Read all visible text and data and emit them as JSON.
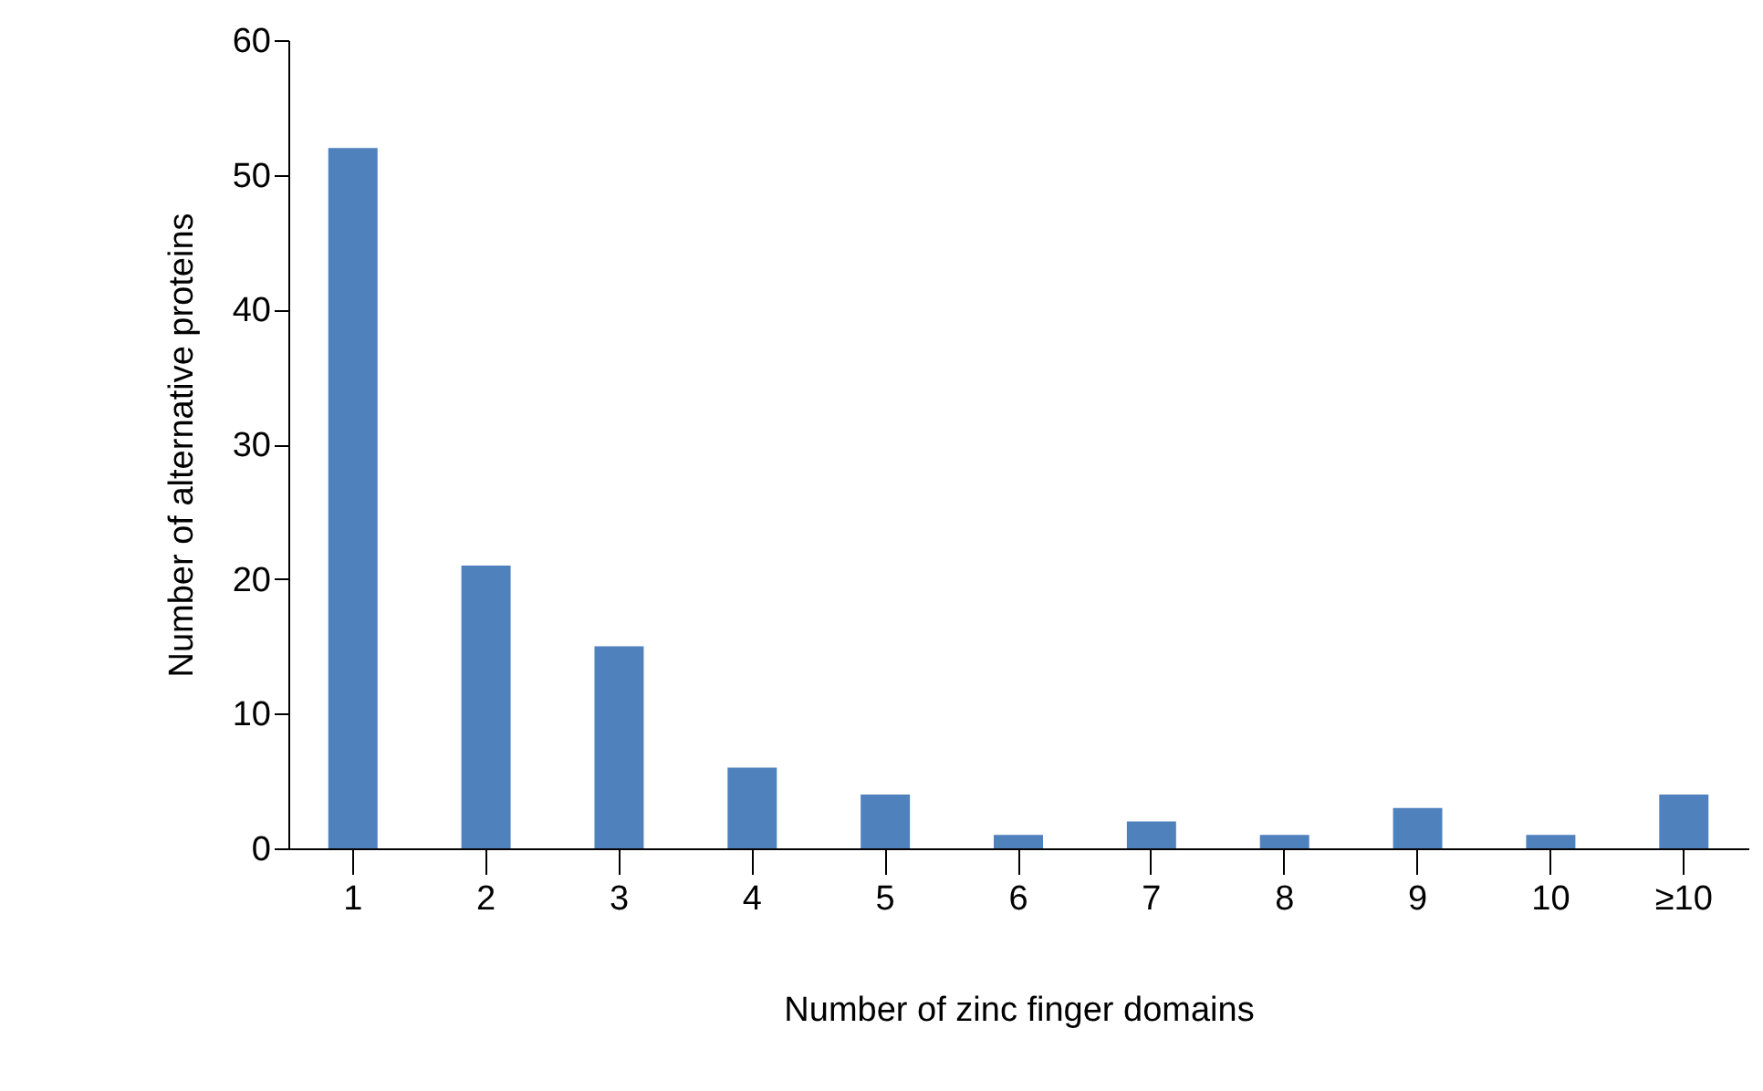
{
  "chart_data": {
    "type": "bar",
    "xlabel": "Number of zinc finger domains",
    "ylabel": "Number of alternative proteins",
    "categories": [
      "1",
      "2",
      "3",
      "4",
      "5",
      "6",
      "7",
      "8",
      "9",
      "10",
      "≥10"
    ],
    "values": [
      52,
      21,
      15,
      6,
      4,
      1,
      2,
      1,
      3,
      1,
      4
    ],
    "color": "#4f81bd",
    "ylim": [
      0,
      60
    ],
    "yticks": [
      0,
      10,
      20,
      30,
      40,
      50,
      60
    ],
    "grid": false
  }
}
